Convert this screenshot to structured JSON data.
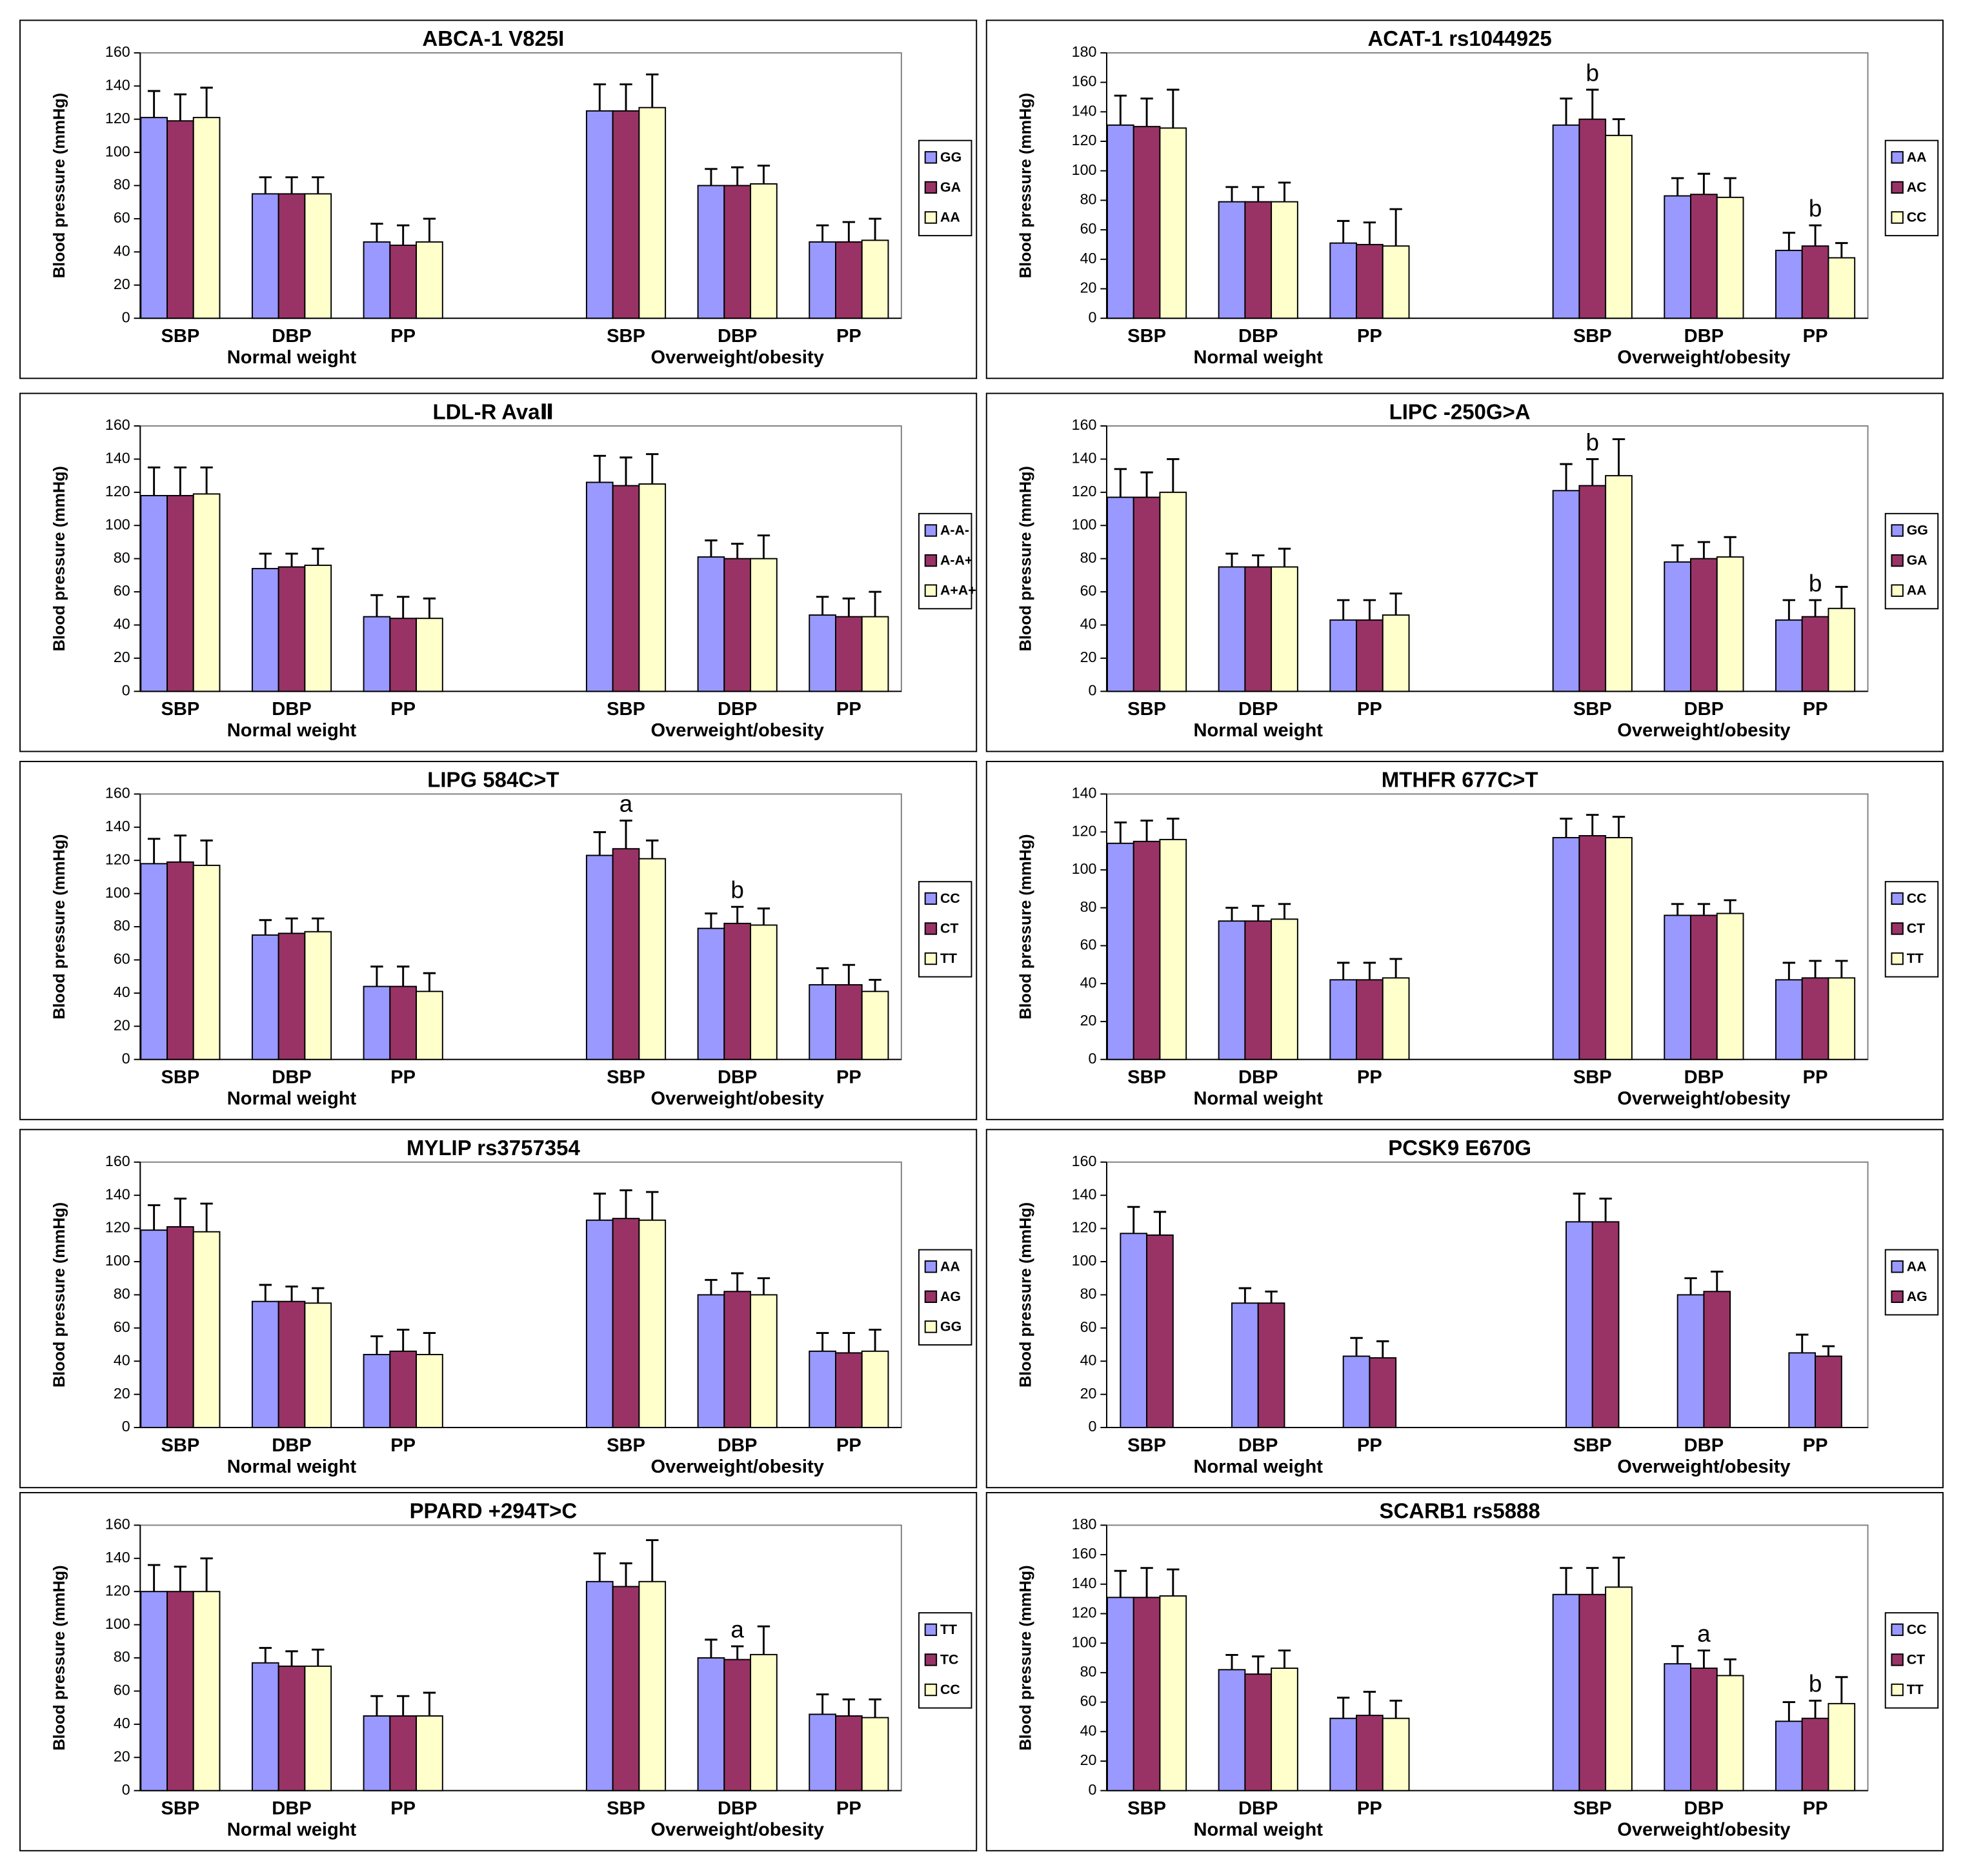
{
  "chart_data": [
    {
      "type": "bar",
      "title": "ABCA-1 V825I",
      "y_label": "Blood pressure (mmHg)",
      "categories": [
        "SBP",
        "DBP",
        "PP",
        "SBP",
        "DBP",
        "PP"
      ],
      "groups": [
        "Normal weight",
        "Overweight/obesity"
      ],
      "ylim": [
        0,
        160
      ],
      "yticks": [
        0,
        20,
        40,
        60,
        80,
        100,
        120,
        140,
        160
      ],
      "series": [
        {
          "name": "GG",
          "color": "#9999ff",
          "values": [
            121,
            75,
            46,
            125,
            80,
            46
          ],
          "errors": [
            16,
            10,
            11,
            16,
            10,
            10
          ]
        },
        {
          "name": "GA",
          "color": "#993366",
          "values": [
            119,
            75,
            44,
            125,
            80,
            46
          ],
          "errors": [
            16,
            10,
            12,
            16,
            11,
            12
          ]
        },
        {
          "name": "AA",
          "color": "#ffffcc",
          "values": [
            121,
            75,
            46,
            127,
            81,
            47
          ],
          "errors": [
            18,
            10,
            14,
            20,
            11,
            13
          ]
        }
      ]
    },
    {
      "type": "bar",
      "title": "ACAT-1 rs1044925",
      "y_label": "Blood pressure (mmHg)",
      "categories": [
        "SBP",
        "DBP",
        "PP",
        "SBP",
        "DBP",
        "PP"
      ],
      "groups": [
        "Normal weight",
        "Overweight/obesity"
      ],
      "ylim": [
        0,
        180
      ],
      "yticks": [
        0,
        20,
        40,
        60,
        80,
        100,
        120,
        140,
        160,
        180
      ],
      "series": [
        {
          "name": "AA",
          "color": "#9999ff",
          "values": [
            131,
            79,
            51,
            131,
            83,
            46
          ],
          "errors": [
            20,
            10,
            15,
            18,
            12,
            12
          ]
        },
        {
          "name": "AC",
          "color": "#993366",
          "values": [
            130,
            79,
            50,
            135,
            84,
            49
          ],
          "errors": [
            19,
            10,
            15,
            20,
            14,
            14
          ],
          "annotations": [
            null,
            null,
            null,
            "b",
            null,
            "b"
          ]
        },
        {
          "name": "CC",
          "color": "#ffffcc",
          "values": [
            129,
            79,
            49,
            124,
            82,
            41
          ],
          "errors": [
            26,
            13,
            25,
            11,
            13,
            10
          ]
        }
      ]
    },
    {
      "type": "bar",
      "title": "LDL-R AvaⅡ",
      "y_label": "Blood pressure (mmHg)",
      "categories": [
        "SBP",
        "DBP",
        "PP",
        "SBP",
        "DBP",
        "PP"
      ],
      "groups": [
        "Normal weight",
        "Overweight/obesity"
      ],
      "ylim": [
        0,
        160
      ],
      "yticks": [
        0,
        20,
        40,
        60,
        80,
        100,
        120,
        140,
        160
      ],
      "series": [
        {
          "name": "A-A-",
          "color": "#9999ff",
          "values": [
            118,
            74,
            45,
            126,
            81,
            46
          ],
          "errors": [
            17,
            9,
            13,
            16,
            10,
            11
          ]
        },
        {
          "name": "A-A+",
          "color": "#993366",
          "values": [
            118,
            75,
            44,
            124,
            80,
            45
          ],
          "errors": [
            17,
            8,
            13,
            17,
            9,
            11
          ]
        },
        {
          "name": "A+A+",
          "color": "#ffffcc",
          "values": [
            119,
            76,
            44,
            125,
            80,
            45
          ],
          "errors": [
            16,
            10,
            12,
            18,
            14,
            15
          ]
        }
      ]
    },
    {
      "type": "bar",
      "title": "LIPC -250G>A",
      "y_label": "Blood pressure (mmHg)",
      "categories": [
        "SBP",
        "DBP",
        "PP",
        "SBP",
        "DBP",
        "PP"
      ],
      "groups": [
        "Normal weight",
        "Overweight/obesity"
      ],
      "ylim": [
        0,
        160
      ],
      "yticks": [
        0,
        20,
        40,
        60,
        80,
        100,
        120,
        140,
        160
      ],
      "series": [
        {
          "name": "GG",
          "color": "#9999ff",
          "values": [
            117,
            75,
            43,
            121,
            78,
            43
          ],
          "errors": [
            17,
            8,
            12,
            16,
            10,
            12
          ]
        },
        {
          "name": "GA",
          "color": "#993366",
          "values": [
            117,
            75,
            43,
            124,
            80,
            45
          ],
          "errors": [
            15,
            7,
            12,
            16,
            10,
            10
          ],
          "annotations": [
            null,
            null,
            null,
            "b",
            null,
            "b"
          ]
        },
        {
          "name": "AA",
          "color": "#ffffcc",
          "values": [
            120,
            75,
            46,
            130,
            81,
            50
          ],
          "errors": [
            20,
            11,
            13,
            22,
            12,
            13
          ]
        }
      ]
    },
    {
      "type": "bar",
      "title": "LIPG 584C>T",
      "y_label": "Blood pressure (mmHg)",
      "categories": [
        "SBP",
        "DBP",
        "PP",
        "SBP",
        "DBP",
        "PP"
      ],
      "groups": [
        "Normal weight",
        "Overweight/obesity"
      ],
      "ylim": [
        0,
        160
      ],
      "yticks": [
        0,
        20,
        40,
        60,
        80,
        100,
        120,
        140,
        160
      ],
      "series": [
        {
          "name": "CC",
          "color": "#9999ff",
          "values": [
            118,
            75,
            44,
            123,
            79,
            45
          ],
          "errors": [
            15,
            9,
            12,
            14,
            9,
            10
          ]
        },
        {
          "name": "CT",
          "color": "#993366",
          "values": [
            119,
            76,
            44,
            127,
            82,
            45
          ],
          "errors": [
            16,
            9,
            12,
            17,
            10,
            12
          ],
          "annotations": [
            null,
            null,
            null,
            "a",
            "b",
            null
          ]
        },
        {
          "name": "TT",
          "color": "#ffffcc",
          "values": [
            117,
            77,
            41,
            121,
            81,
            41
          ],
          "errors": [
            15,
            8,
            11,
            11,
            10,
            7
          ]
        }
      ]
    },
    {
      "type": "bar",
      "title": "MTHFR 677C>T",
      "y_label": "Blood pressure (mmHg)",
      "categories": [
        "SBP",
        "DBP",
        "PP",
        "SBP",
        "DBP",
        "PP"
      ],
      "groups": [
        "Normal weight",
        "Overweight/obesity"
      ],
      "ylim": [
        0,
        140
      ],
      "yticks": [
        0,
        20,
        40,
        60,
        80,
        100,
        120,
        140
      ],
      "series": [
        {
          "name": "CC",
          "color": "#9999ff",
          "values": [
            114,
            73,
            42,
            117,
            76,
            42
          ],
          "errors": [
            11,
            7,
            9,
            10,
            6,
            9
          ]
        },
        {
          "name": "CT",
          "color": "#993366",
          "values": [
            115,
            73,
            42,
            118,
            76,
            43
          ],
          "errors": [
            11,
            8,
            9,
            11,
            6,
            9
          ]
        },
        {
          "name": "TT",
          "color": "#ffffcc",
          "values": [
            116,
            74,
            43,
            117,
            77,
            43
          ],
          "errors": [
            11,
            8,
            10,
            11,
            7,
            9
          ]
        }
      ]
    },
    {
      "type": "bar",
      "title": "MYLIP rs3757354",
      "y_label": "Blood pressure (mmHg)",
      "categories": [
        "SBP",
        "DBP",
        "PP",
        "SBP",
        "DBP",
        "PP"
      ],
      "groups": [
        "Normal weight",
        "Overweight/obesity"
      ],
      "ylim": [
        0,
        160
      ],
      "yticks": [
        0,
        20,
        40,
        60,
        80,
        100,
        120,
        140,
        160
      ],
      "series": [
        {
          "name": "AA",
          "color": "#9999ff",
          "values": [
            119,
            76,
            44,
            125,
            80,
            46
          ],
          "errors": [
            15,
            10,
            11,
            16,
            9,
            11
          ]
        },
        {
          "name": "AG",
          "color": "#993366",
          "values": [
            121,
            76,
            46,
            126,
            82,
            45
          ],
          "errors": [
            17,
            9,
            13,
            17,
            11,
            12
          ]
        },
        {
          "name": "GG",
          "color": "#ffffcc",
          "values": [
            118,
            75,
            44,
            125,
            80,
            46
          ],
          "errors": [
            17,
            9,
            13,
            17,
            10,
            13
          ]
        }
      ]
    },
    {
      "type": "bar",
      "title": "PCSK9 E670G",
      "y_label": "Blood pressure (mmHg)",
      "categories": [
        "SBP",
        "DBP",
        "PP",
        "SBP",
        "DBP",
        "PP"
      ],
      "groups": [
        "Normal weight",
        "Overweight/obesity"
      ],
      "ylim": [
        0,
        160
      ],
      "yticks": [
        0,
        20,
        40,
        60,
        80,
        100,
        120,
        140,
        160
      ],
      "series": [
        {
          "name": "AA",
          "color": "#9999ff",
          "values": [
            117,
            75,
            43,
            124,
            80,
            45
          ],
          "errors": [
            16,
            9,
            11,
            17,
            10,
            11
          ]
        },
        {
          "name": "AG",
          "color": "#993366",
          "values": [
            116,
            75,
            42,
            124,
            82,
            43
          ],
          "errors": [
            14,
            7,
            10,
            14,
            12,
            6
          ]
        }
      ]
    },
    {
      "type": "bar",
      "title": "PPARD +294T>C",
      "y_label": "Blood pressure (mmHg)",
      "categories": [
        "SBP",
        "DBP",
        "PP",
        "SBP",
        "DBP",
        "PP"
      ],
      "groups": [
        "Normal weight",
        "Overweight/obesity"
      ],
      "ylim": [
        0,
        160
      ],
      "yticks": [
        0,
        20,
        40,
        60,
        80,
        100,
        120,
        140,
        160
      ],
      "series": [
        {
          "name": "TT",
          "color": "#9999ff",
          "values": [
            120,
            77,
            45,
            126,
            80,
            46
          ],
          "errors": [
            16,
            9,
            12,
            17,
            11,
            12
          ]
        },
        {
          "name": "TC",
          "color": "#993366",
          "values": [
            120,
            75,
            45,
            123,
            79,
            45
          ],
          "errors": [
            15,
            9,
            12,
            14,
            8,
            10
          ],
          "annotations": [
            null,
            null,
            null,
            null,
            "a",
            null
          ]
        },
        {
          "name": "CC",
          "color": "#ffffcc",
          "values": [
            120,
            75,
            45,
            126,
            82,
            44
          ],
          "errors": [
            20,
            10,
            14,
            25,
            17,
            11
          ]
        }
      ]
    },
    {
      "type": "bar",
      "title": "SCARB1 rs5888",
      "y_label": "Blood pressure (mmHg)",
      "categories": [
        "SBP",
        "DBP",
        "PP",
        "SBP",
        "DBP",
        "PP"
      ],
      "groups": [
        "Normal weight",
        "Overweight/obesity"
      ],
      "ylim": [
        0,
        180
      ],
      "yticks": [
        0,
        20,
        40,
        60,
        80,
        100,
        120,
        140,
        160,
        180
      ],
      "series": [
        {
          "name": "CC",
          "color": "#9999ff",
          "values": [
            131,
            82,
            49,
            133,
            86,
            47
          ],
          "errors": [
            18,
            10,
            14,
            18,
            12,
            13
          ]
        },
        {
          "name": "CT",
          "color": "#993366",
          "values": [
            131,
            79,
            51,
            133,
            83,
            49
          ],
          "errors": [
            20,
            12,
            16,
            18,
            12,
            12
          ],
          "annotations": [
            null,
            null,
            null,
            null,
            "a",
            "b"
          ]
        },
        {
          "name": "TT",
          "color": "#ffffcc",
          "values": [
            132,
            83,
            49,
            138,
            78,
            59
          ],
          "errors": [
            18,
            12,
            12,
            20,
            11,
            18
          ]
        }
      ]
    }
  ]
}
